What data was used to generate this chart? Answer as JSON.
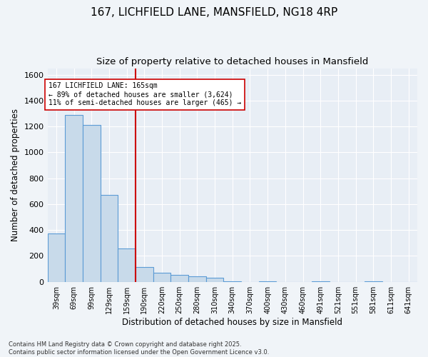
{
  "title_line1": "167, LICHFIELD LANE, MANSFIELD, NG18 4RP",
  "title_line2": "Size of property relative to detached houses in Mansfield",
  "xlabel": "Distribution of detached houses by size in Mansfield",
  "ylabel": "Number of detached properties",
  "categories": [
    "39sqm",
    "69sqm",
    "99sqm",
    "129sqm",
    "159sqm",
    "190sqm",
    "220sqm",
    "250sqm",
    "280sqm",
    "310sqm",
    "340sqm",
    "370sqm",
    "400sqm",
    "430sqm",
    "460sqm",
    "491sqm",
    "521sqm",
    "551sqm",
    "581sqm",
    "611sqm",
    "641sqm"
  ],
  "values": [
    375,
    1290,
    1210,
    670,
    260,
    115,
    70,
    55,
    45,
    30,
    5,
    0,
    5,
    0,
    0,
    5,
    0,
    0,
    5,
    0,
    0
  ],
  "bar_color": "#c8daea",
  "bar_edge_color": "#5b9bd5",
  "ref_line_label": "167 LICHFIELD LANE: 165sqm",
  "annotation_line1": "← 89% of detached houses are smaller (3,624)",
  "annotation_line2": "11% of semi-detached houses are larger (465) →",
  "annotation_box_color": "#ffffff",
  "annotation_box_edge_color": "#cc0000",
  "ref_line_color": "#cc0000",
  "ylim": [
    0,
    1650
  ],
  "yticks": [
    0,
    200,
    400,
    600,
    800,
    1000,
    1200,
    1400,
    1600
  ],
  "footer_line1": "Contains HM Land Registry data © Crown copyright and database right 2025.",
  "footer_line2": "Contains public sector information licensed under the Open Government Licence v3.0.",
  "bg_color": "#f0f4f8",
  "plot_bg_color": "#e8eef5",
  "title_fontsize": 11,
  "subtitle_fontsize": 9.5,
  "grid_color": "#ffffff"
}
